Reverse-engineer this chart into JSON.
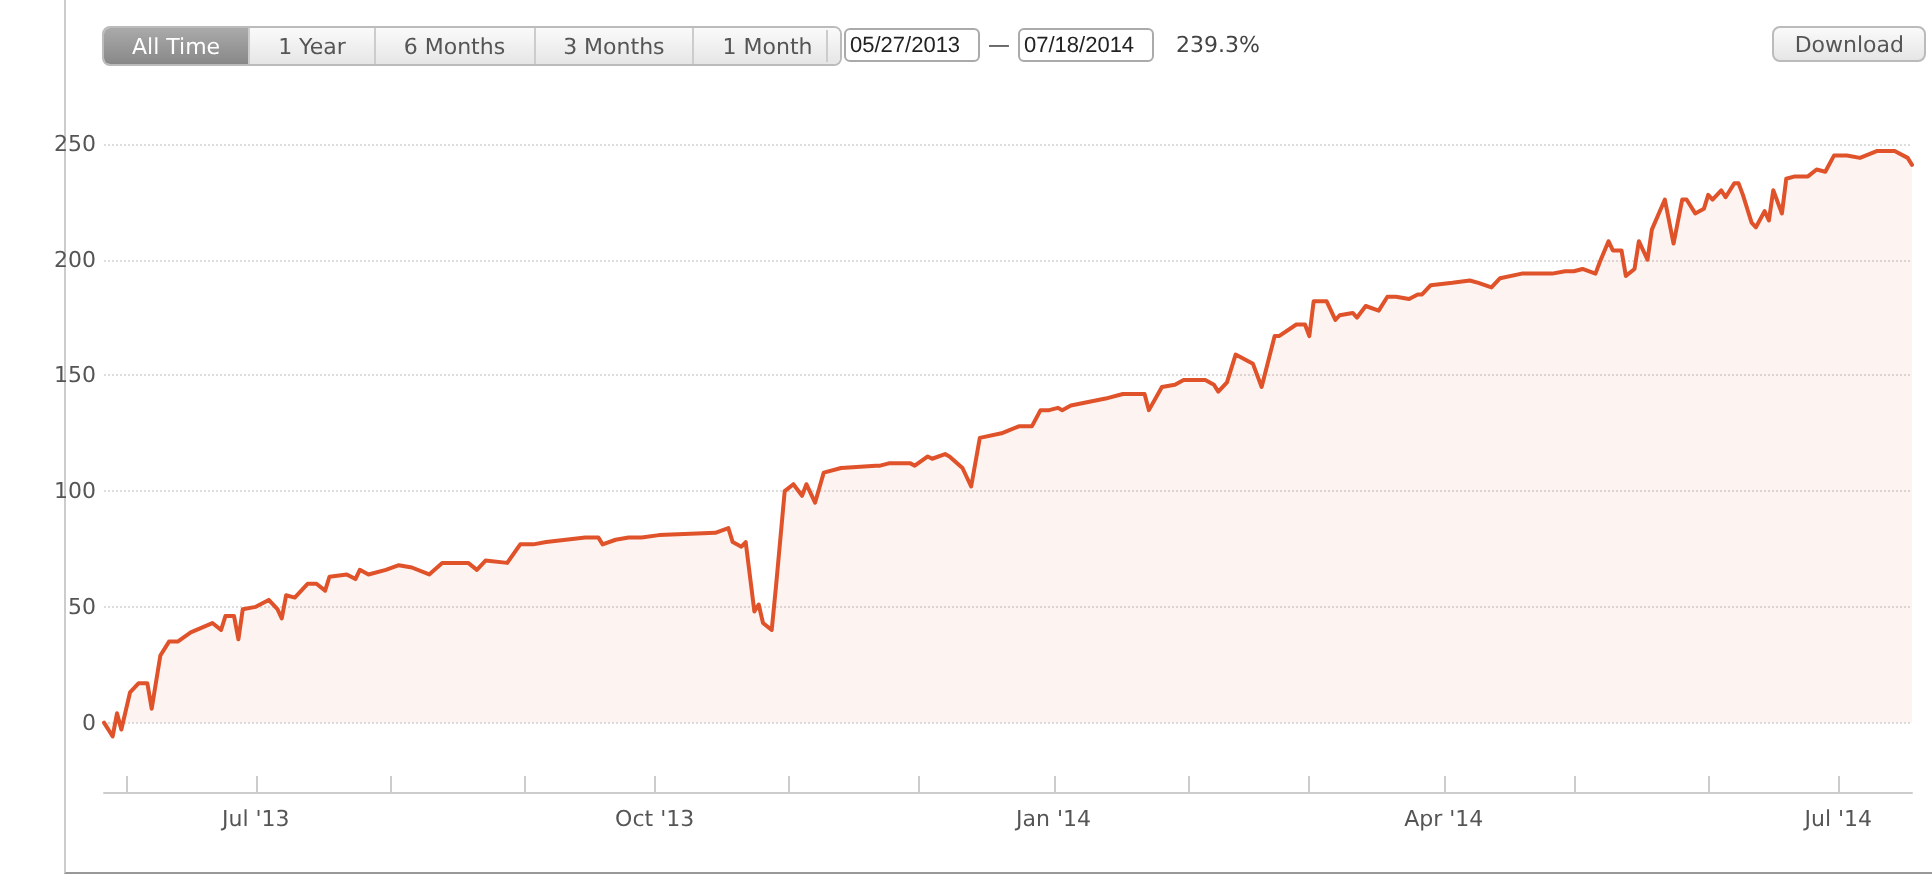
{
  "chart_data": {
    "type": "area",
    "annotations": [
      "All Time",
      "1 Year",
      "6 Months",
      "3 Months",
      "1 Month",
      "05/27/2013",
      "—",
      "07/18/2014",
      "239.3%",
      "Download"
    ],
    "x": [
      "2013-05-27",
      "2013-05-29",
      "2013-05-30",
      "2013-05-31",
      "2013-06-02",
      "2013-06-04",
      "2013-06-06",
      "2013-06-07",
      "2013-06-09",
      "2013-06-11",
      "2013-06-13",
      "2013-06-16",
      "2013-06-21",
      "2013-06-23",
      "2013-06-24",
      "2013-06-26",
      "2013-06-27",
      "2013-06-28",
      "2013-07-01",
      "2013-07-04",
      "2013-07-06",
      "2013-07-07",
      "2013-07-08",
      "2013-07-10",
      "2013-07-13",
      "2013-07-15",
      "2013-07-17",
      "2013-07-18",
      "2013-07-22",
      "2013-07-24",
      "2013-07-25",
      "2013-07-27",
      "2013-07-31",
      "2013-08-03",
      "2013-08-06",
      "2013-08-10",
      "2013-08-13",
      "2013-08-19",
      "2013-08-21",
      "2013-08-23",
      "2013-08-28",
      "2013-08-31",
      "2013-09-03",
      "2013-09-06",
      "2013-09-15",
      "2013-09-18",
      "2013-09-19",
      "2013-09-22",
      "2013-09-25",
      "2013-09-28",
      "2013-10-02",
      "2013-10-15",
      "2013-10-18",
      "2013-10-19",
      "2013-10-21",
      "2013-10-22",
      "2013-10-24",
      "2013-10-25",
      "2013-10-26",
      "2013-10-28",
      "2013-10-29",
      "2013-10-31",
      "2013-11-02",
      "2013-11-04",
      "2013-11-05",
      "2013-11-07",
      "2013-11-09",
      "2013-11-13",
      "2013-11-21",
      "2013-11-22",
      "2013-11-24",
      "2013-11-29",
      "2013-11-30",
      "2013-12-03",
      "2013-12-04",
      "2013-12-07",
      "2013-12-08",
      "2013-12-11",
      "2013-12-13",
      "2013-12-15",
      "2013-12-20",
      "2013-12-24",
      "2013-12-27",
      "2013-12-29",
      "2013-12-31",
      "2014-01-02",
      "2014-01-03",
      "2014-01-05",
      "2014-01-13",
      "2014-01-17",
      "2014-01-22",
      "2014-01-23",
      "2014-01-26",
      "2014-01-29",
      "2014-01-31",
      "2014-02-05",
      "2014-02-07",
      "2014-02-08",
      "2014-02-10",
      "2014-02-12",
      "2014-02-16",
      "2014-02-18",
      "2014-02-21",
      "2014-02-22",
      "2014-02-26",
      "2014-02-28",
      "2014-03-01",
      "2014-03-02",
      "2014-03-05",
      "2014-03-07",
      "2014-03-08",
      "2014-03-11",
      "2014-03-12",
      "2014-03-14",
      "2014-03-17",
      "2014-03-19",
      "2014-03-21",
      "2014-03-24",
      "2014-03-26",
      "2014-03-27",
      "2014-03-29",
      "2014-04-03",
      "2014-04-07",
      "2014-04-09",
      "2014-04-12",
      "2014-04-14",
      "2014-04-19",
      "2014-04-26",
      "2014-04-29",
      "2014-05-01",
      "2014-05-03",
      "2014-05-06",
      "2014-05-07",
      "2014-05-09",
      "2014-05-10",
      "2014-05-12",
      "2014-05-13",
      "2014-05-15",
      "2014-05-16",
      "2014-05-18",
      "2014-05-19",
      "2014-05-22",
      "2014-05-24",
      "2014-05-26",
      "2014-05-27",
      "2014-05-29",
      "2014-05-31",
      "2014-06-01",
      "2014-06-02",
      "2014-06-04",
      "2014-06-05",
      "2014-06-07",
      "2014-06-08",
      "2014-06-09",
      "2014-06-11",
      "2014-06-12",
      "2014-06-14",
      "2014-06-15",
      "2014-06-16",
      "2014-06-18",
      "2014-06-19",
      "2014-06-21",
      "2014-06-24",
      "2014-06-26",
      "2014-06-28",
      "2014-06-30",
      "2014-07-03",
      "2014-07-06",
      "2014-07-10",
      "2014-07-14",
      "2014-07-17",
      "2014-07-18"
    ],
    "series": [
      {
        "color": "#e0522a",
        "values": [
          0,
          -6,
          4,
          -3,
          13,
          17,
          17,
          6,
          29,
          35,
          35,
          39,
          43,
          40,
          46,
          46,
          36,
          49,
          50,
          53,
          49,
          45,
          55,
          54,
          60,
          60,
          57,
          63,
          64,
          62,
          66,
          64,
          66,
          68,
          67,
          64,
          69,
          69,
          66,
          70,
          69,
          77,
          77,
          78,
          80,
          80,
          77,
          79,
          80,
          80,
          81,
          82,
          84,
          78,
          76,
          78,
          48,
          51,
          43,
          40,
          59,
          100,
          103,
          98,
          103,
          95,
          108,
          110,
          111,
          111,
          112,
          112,
          111,
          115,
          114,
          116,
          115,
          110,
          102,
          123,
          125,
          128,
          128,
          135,
          135,
          136,
          135,
          137,
          140,
          142,
          142,
          135,
          145,
          146,
          148,
          148,
          146,
          143,
          147,
          159,
          155,
          145,
          167,
          167,
          172,
          172,
          167,
          182,
          182,
          174,
          176,
          177,
          175,
          180,
          178,
          184,
          184,
          183,
          185,
          185,
          189,
          190,
          191,
          190,
          188,
          192,
          194,
          194,
          195,
          195,
          196,
          194,
          199,
          208,
          204,
          204,
          193,
          196,
          208,
          200,
          213,
          226,
          207,
          226,
          226,
          220,
          222,
          228,
          226,
          230,
          227,
          233,
          233,
          228,
          216,
          214,
          221,
          217,
          230,
          220,
          235,
          236,
          236,
          239,
          238,
          245,
          245,
          244,
          247,
          247,
          244,
          241
        ]
      }
    ],
    "xlim": [
      "2013-05-27",
      "2014-07-18"
    ],
    "xticks": [
      {
        "value": "2013-06",
        "label": null
      },
      {
        "value": "2013-07",
        "label": "Jul '13"
      },
      {
        "value": "2013-08",
        "label": null
      },
      {
        "value": "2013-09",
        "label": null
      },
      {
        "value": "2013-10",
        "label": "Oct '13"
      },
      {
        "value": "2013-11",
        "label": null
      },
      {
        "value": "2013-12",
        "label": null
      },
      {
        "value": "2014-01",
        "label": "Jan '14"
      },
      {
        "value": "2014-02",
        "label": null
      },
      {
        "value": "2014-03",
        "label": null
      },
      {
        "value": "2014-04",
        "label": "Apr '14"
      },
      {
        "value": "2014-05",
        "label": null
      },
      {
        "value": "2014-06",
        "label": null
      },
      {
        "value": "2014-07",
        "label": "Jul '14"
      }
    ],
    "ylim": [
      -30,
      250
    ],
    "yticks": [
      0,
      50,
      100,
      150,
      200,
      250
    ],
    "grid": "y",
    "marker": "none",
    "line_style": "solid"
  }
}
